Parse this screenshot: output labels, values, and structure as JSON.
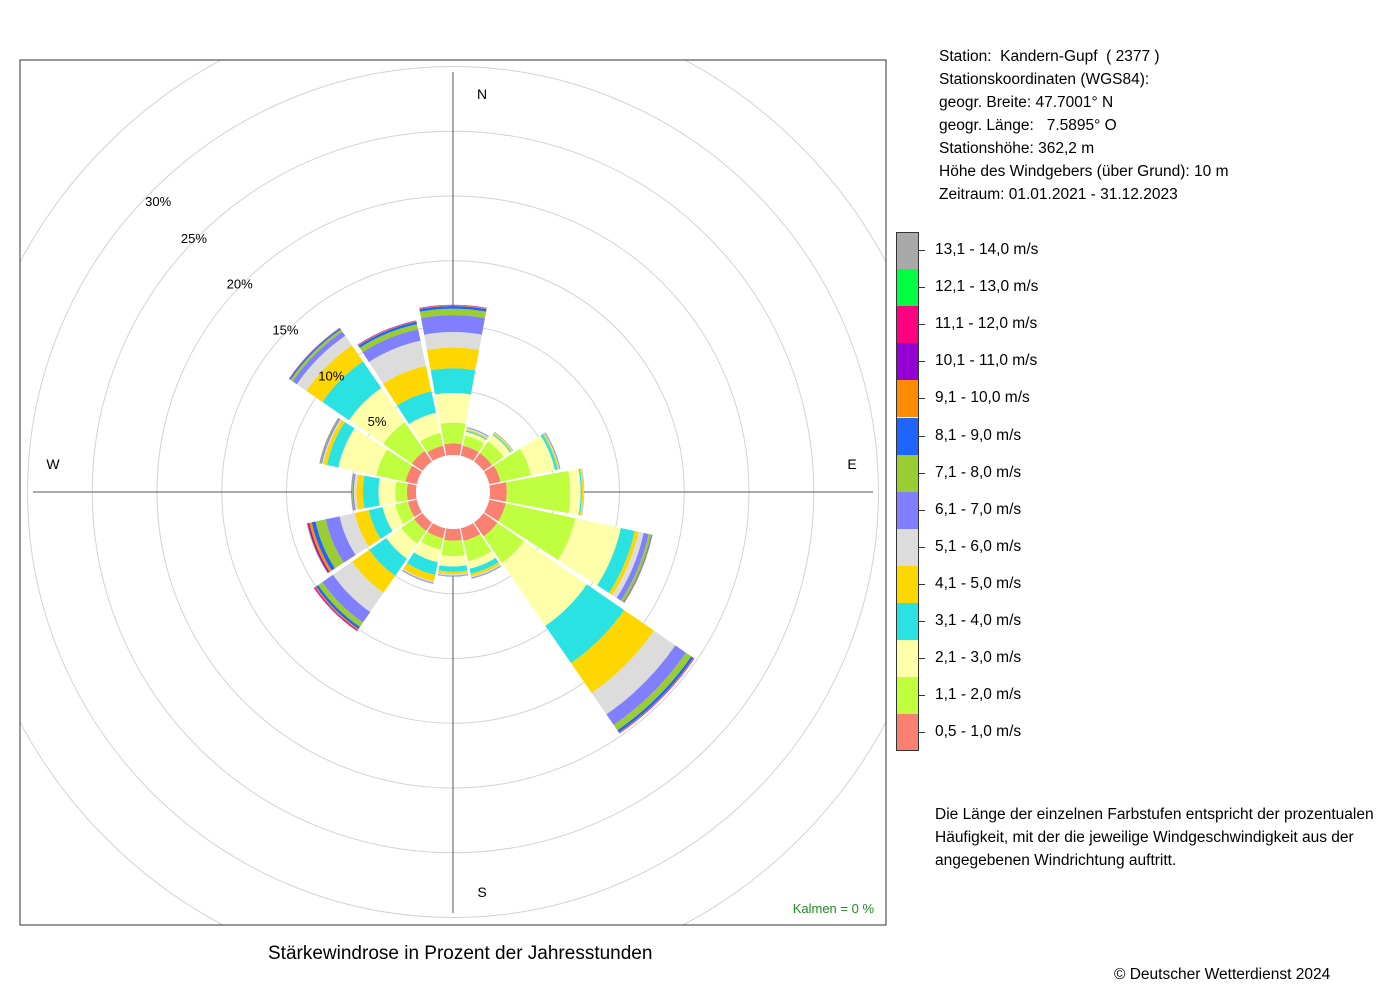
{
  "station_info": {
    "station": "Station:  Kandern-Gupf  ( 2377 )",
    "coords_title": "Stationskoordinaten (WGS84):",
    "lat": "geogr. Breite: 47.7001° N",
    "lon": "geogr. Länge:   7.5895° O",
    "elevation": "Stationshöhe: 362,2 m",
    "sensor_height": "Höhe des Windgebers (über Grund): 10 m",
    "period": "Zeitraum: 01.01.2021 - 31.12.2023"
  },
  "note": "Die Länge der einzelnen Farbstufen entspricht der prozentualen Häufigkeit, mit der die jeweilige Windgeschwindigkeit aus der angegebenen Windrichtung auftritt.",
  "caption": "Stärkewindrose in Prozent der Jahresstunden",
  "copyright": "© Deutscher Wetterdienst  2024",
  "calm": "Kalmen  =  0 %",
  "colors": {
    "calm": "#228B22",
    "axis": "#555555",
    "ring": "#d3d3d3"
  },
  "chart_data": {
    "type": "windrose",
    "directions": [
      "N",
      "NNE",
      "NE",
      "ENE",
      "E",
      "ESE",
      "SE",
      "SSE",
      "S",
      "SSW",
      "SW",
      "WSW",
      "W",
      "WNW",
      "NW",
      "NNW"
    ],
    "compass_labels": [
      "N",
      "E",
      "S",
      "W"
    ],
    "ring_labels": [
      "5%",
      "10%",
      "15%",
      "20%",
      "25%",
      "30%"
    ],
    "rmax": 30,
    "bins": [
      {
        "label": "0,5 - 1,0 m/s",
        "color": "#FA8072"
      },
      {
        "label": "1,1 - 2,0 m/s",
        "color": "#BFFF3F"
      },
      {
        "label": "2,1 - 3,0 m/s",
        "color": "#FFFFAA"
      },
      {
        "label": "3,1 - 4,0 m/s",
        "color": "#2AE2E2"
      },
      {
        "label": "4,1 - 5,0 m/s",
        "color": "#FFD700"
      },
      {
        "label": "5,1 - 6,0 m/s",
        "color": "#DCDCDC"
      },
      {
        "label": "6,1 - 7,0 m/s",
        "color": "#8080FF"
      },
      {
        "label": "7,1 - 8,0 m/s",
        "color": "#9ACD32"
      },
      {
        "label": "8,1 - 9,0 m/s",
        "color": "#1E64FF"
      },
      {
        "label": "9,1 - 10,0 m/s",
        "color": "#FF8C00"
      },
      {
        "label": "10,1 - 11,0 m/s",
        "color": "#9400D3"
      },
      {
        "label": "11,1 - 12,0 m/s",
        "color": "#FF0080"
      },
      {
        "label": "12,1 - 13,0 m/s",
        "color": "#00FF40"
      },
      {
        "label": "13,1 - 14,0 m/s",
        "color": "#A9A9A9"
      }
    ],
    "cumulative_percent": [
      [
        0.9,
        2.5,
        4.8,
        6.7,
        8.3,
        9.5,
        10.8,
        11.3,
        11.5,
        11.55,
        11.58,
        11.6,
        11.6,
        11.6
      ],
      [
        0.8,
        1.6,
        1.9,
        2.0,
        2.1,
        2.2,
        2.25,
        2.27,
        2.28,
        2.28,
        2.28,
        2.28,
        2.28,
        2.28
      ],
      [
        0.8,
        1.9,
        2.5,
        2.6,
        2.7,
        2.75,
        2.78,
        2.8,
        2.8,
        2.8,
        2.8,
        2.8,
        2.8,
        2.8
      ],
      [
        0.9,
        3.3,
        5.2,
        5.4,
        5.5,
        5.55,
        5.6,
        5.62,
        5.63,
        5.63,
        5.63,
        5.63,
        5.63,
        5.63
      ],
      [
        1.3,
        6.2,
        7.0,
        7.1,
        7.2,
        7.25,
        7.27,
        7.28,
        7.28,
        7.28,
        7.28,
        7.28,
        7.28,
        7.28
      ],
      [
        1.3,
        6.8,
        10.4,
        11.5,
        11.8,
        12.2,
        12.6,
        12.8,
        12.85,
        12.88,
        12.9,
        12.9,
        12.9,
        12.9
      ],
      [
        1.3,
        3.8,
        9.7,
        13.2,
        16.0,
        18.0,
        19.0,
        19.5,
        19.7,
        19.75,
        19.78,
        19.8,
        19.8,
        19.8
      ],
      [
        1.0,
        2.6,
        3.2,
        3.6,
        3.8,
        3.9,
        3.95,
        3.98,
        4.0,
        4.0,
        4.0,
        4.0,
        4.0,
        4.0
      ],
      [
        0.9,
        2.1,
        2.9,
        3.3,
        3.5,
        3.6,
        3.65,
        3.67,
        3.68,
        3.68,
        3.68,
        3.68,
        3.68,
        3.68
      ],
      [
        0.8,
        1.7,
        2.7,
        3.7,
        4.2,
        4.3,
        4.35,
        4.38,
        4.4,
        4.4,
        4.4,
        4.4,
        4.4,
        4.4
      ],
      [
        0.8,
        2.0,
        3.4,
        5.0,
        6.6,
        8.4,
        9.4,
        9.8,
        10.0,
        10.1,
        10.15,
        10.2,
        10.2,
        10.2
      ],
      [
        0.7,
        1.7,
        2.7,
        3.8,
        4.9,
        6.1,
        7.2,
        8.0,
        8.3,
        8.5,
        8.6,
        8.65,
        8.68,
        8.7
      ],
      [
        0.7,
        1.6,
        2.9,
        4.1,
        4.6,
        4.8,
        4.9,
        4.95,
        4.98,
        5.0,
        5.0,
        5.0,
        5.0,
        5.0
      ],
      [
        0.9,
        3.2,
        6.2,
        7.1,
        7.4,
        7.5,
        7.6,
        7.65,
        7.68,
        7.7,
        7.7,
        7.7,
        7.7,
        7.7
      ],
      [
        1.0,
        3.7,
        6.9,
        9.4,
        10.9,
        11.8,
        12.2,
        12.4,
        12.5,
        12.52,
        12.53,
        12.55,
        12.55,
        12.55
      ],
      [
        0.8,
        1.8,
        3.4,
        5.1,
        7.1,
        9.1,
        10.0,
        10.4,
        10.6,
        10.65,
        10.68,
        10.7,
        10.7,
        10.7
      ]
    ]
  }
}
